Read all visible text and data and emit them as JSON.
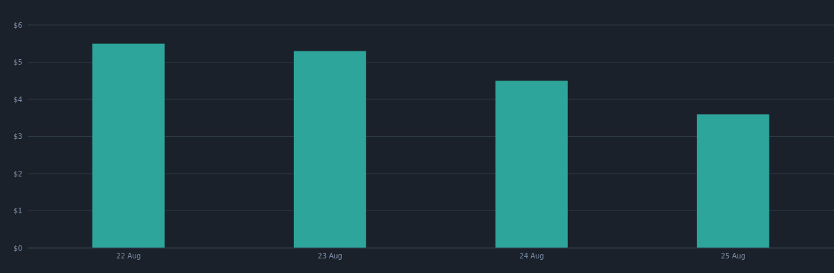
{
  "chart_data": {
    "type": "bar",
    "categories": [
      "22 Aug",
      "23 Aug",
      "24 Aug",
      "25 Aug"
    ],
    "values": [
      5.5,
      5.3,
      4.5,
      3.6
    ],
    "color": "#2ea59a",
    "ylim": [
      0,
      6
    ],
    "yticks": [
      {
        "value": 0,
        "label": "$0"
      },
      {
        "value": 1,
        "label": "$1"
      },
      {
        "value": 2,
        "label": "$2"
      },
      {
        "value": 3,
        "label": "$3"
      },
      {
        "value": 4,
        "label": "$4"
      },
      {
        "value": 5,
        "label": "$5"
      },
      {
        "value": 6,
        "label": "$6"
      }
    ],
    "grid": "y",
    "legend": false
  }
}
